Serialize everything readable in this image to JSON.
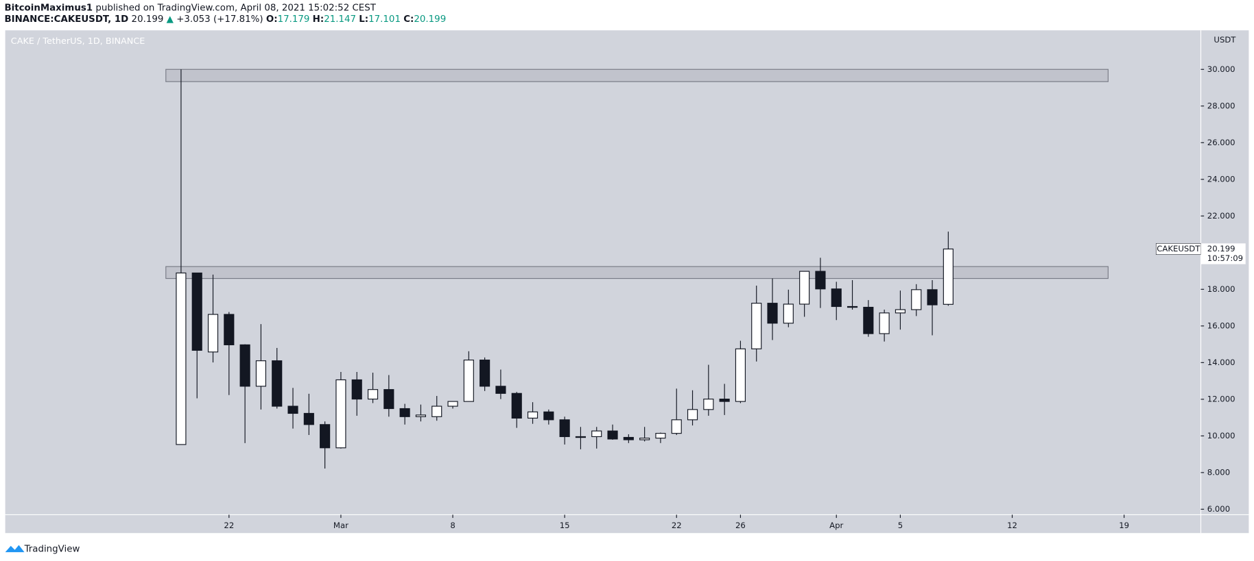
{
  "header": {
    "author": "BitcoinMaximus1",
    "published": "published on TradingView.com, April 08, 2021 15:02:52 CEST",
    "symbol": "BINANCE:CAKEUSDT, 1D",
    "price": "20.199",
    "arrow": "▲",
    "change": "+3.053 (+17.81%)",
    "o_label": "O:",
    "o": "17.179",
    "h_label": "H:",
    "h": "21.147",
    "l_label": "L:",
    "l": "17.101",
    "c_label": "C:",
    "c": "20.199"
  },
  "chart_data": {
    "type": "candlestick",
    "title": "CAKE / TetherUS, 1D, BINANCE",
    "y_unit": "USDT",
    "x": [
      0,
      1,
      2,
      3,
      4,
      5,
      6,
      7,
      8,
      9,
      10,
      11,
      12,
      13,
      14,
      15,
      16,
      17,
      18,
      19,
      20,
      21,
      22,
      23,
      24,
      25,
      26,
      27,
      28,
      29,
      30,
      31,
      32,
      33,
      34,
      35,
      36,
      37,
      38,
      39,
      40,
      41,
      42,
      43,
      44,
      45,
      46,
      47,
      48
    ],
    "open": [
      9.53,
      18.89,
      14.58,
      16.63,
      14.97,
      12.71,
      14.1,
      11.62,
      11.23,
      10.62,
      9.35,
      13.06,
      12.01,
      12.53,
      11.49,
      11.05,
      11.05,
      11.62,
      11.88,
      14.14,
      12.71,
      12.32,
      10.97,
      11.31,
      10.88,
      9.96,
      9.96,
      10.27,
      9.92,
      9.79,
      9.88,
      10.14,
      10.88,
      11.44,
      12.01,
      11.88,
      14.75,
      17.24,
      16.15,
      17.19,
      18.98,
      18.02,
      17.06,
      17.02,
      15.58,
      16.71,
      16.89,
      17.98,
      17.179
    ],
    "high": [
      30.0,
      18.9,
      18.8,
      16.76,
      15.0,
      16.1,
      14.8,
      12.62,
      12.3,
      10.79,
      13.49,
      13.49,
      13.45,
      13.32,
      11.75,
      11.71,
      12.18,
      11.9,
      14.62,
      14.28,
      13.62,
      12.4,
      11.84,
      11.44,
      11.05,
      10.49,
      10.49,
      10.62,
      10.09,
      10.49,
      10.18,
      12.58,
      12.49,
      13.88,
      12.84,
      15.19,
      18.2,
      18.59,
      17.98,
      18.98,
      19.72,
      18.41,
      18.5,
      17.41,
      16.89,
      17.93,
      18.28,
      18.5,
      21.147
    ],
    "low": [
      9.53,
      12.05,
      14.01,
      12.23,
      9.61,
      11.44,
      11.49,
      10.4,
      10.05,
      8.22,
      9.31,
      11.1,
      11.79,
      11.05,
      10.62,
      10.79,
      10.83,
      11.49,
      11.88,
      12.45,
      12.01,
      10.44,
      10.66,
      10.62,
      9.53,
      9.27,
      9.31,
      9.79,
      9.61,
      9.7,
      9.61,
      10.05,
      10.57,
      11.1,
      11.14,
      11.79,
      14.06,
      15.23,
      15.93,
      16.5,
      16.98,
      16.32,
      16.89,
      15.41,
      15.15,
      15.8,
      16.54,
      15.49,
      17.101
    ],
    "close": [
      18.89,
      14.67,
      16.63,
      14.97,
      12.71,
      14.1,
      11.62,
      11.23,
      10.62,
      9.35,
      13.06,
      12.01,
      12.53,
      11.49,
      11.05,
      11.14,
      11.62,
      11.88,
      14.14,
      12.71,
      12.32,
      10.97,
      11.31,
      10.88,
      9.96,
      9.96,
      10.27,
      9.83,
      9.79,
      9.88,
      10.14,
      10.88,
      11.44,
      12.01,
      11.88,
      14.75,
      17.24,
      16.15,
      17.19,
      18.98,
      18.02,
      17.06,
      17.02,
      15.58,
      16.71,
      16.89,
      17.98,
      17.15,
      20.199
    ],
    "up_color": "#ffffff",
    "down_color": "#131722",
    "background": "#d1d4dc",
    "zones": [
      [
        29.33,
        30.0
      ],
      [
        18.59,
        19.24
      ]
    ],
    "zone_x": [
      -0.95,
      58
    ],
    "xlim": [
      -11,
      63.8
    ],
    "xticks": [
      {
        "value": 3,
        "label": "22"
      },
      {
        "value": 10,
        "label": "Mar"
      },
      {
        "value": 17,
        "label": "8"
      },
      {
        "value": 24,
        "label": "15"
      },
      {
        "value": 31,
        "label": "22"
      },
      {
        "value": 35,
        "label": "26"
      },
      {
        "value": 41,
        "label": "Apr"
      },
      {
        "value": 45,
        "label": "5"
      },
      {
        "value": 52,
        "label": "12"
      },
      {
        "value": 59,
        "label": "19"
      }
    ],
    "ylim": [
      5.7,
      32.13
    ],
    "yticks": [
      {
        "value": 6,
        "label": "6.000"
      },
      {
        "value": 8,
        "label": "8.000"
      },
      {
        "value": 10,
        "label": "10.000"
      },
      {
        "value": 12,
        "label": "12.000"
      },
      {
        "value": 14,
        "label": "14.000"
      },
      {
        "value": 16,
        "label": "16.000"
      },
      {
        "value": 18,
        "label": "18.000"
      },
      {
        "value": 20,
        "label": "20.000"
      },
      {
        "value": 22,
        "label": "22.000"
      },
      {
        "value": 24,
        "label": "24.000"
      },
      {
        "value": 26,
        "label": "26.000"
      },
      {
        "value": 28,
        "label": "28.000"
      },
      {
        "value": 30,
        "label": "30.000"
      }
    ],
    "last_price": {
      "symbol": "CAKEUSDT",
      "value": 20.199,
      "countdown": "10:57:09"
    }
  },
  "footer": {
    "brand": "TradingView"
  }
}
